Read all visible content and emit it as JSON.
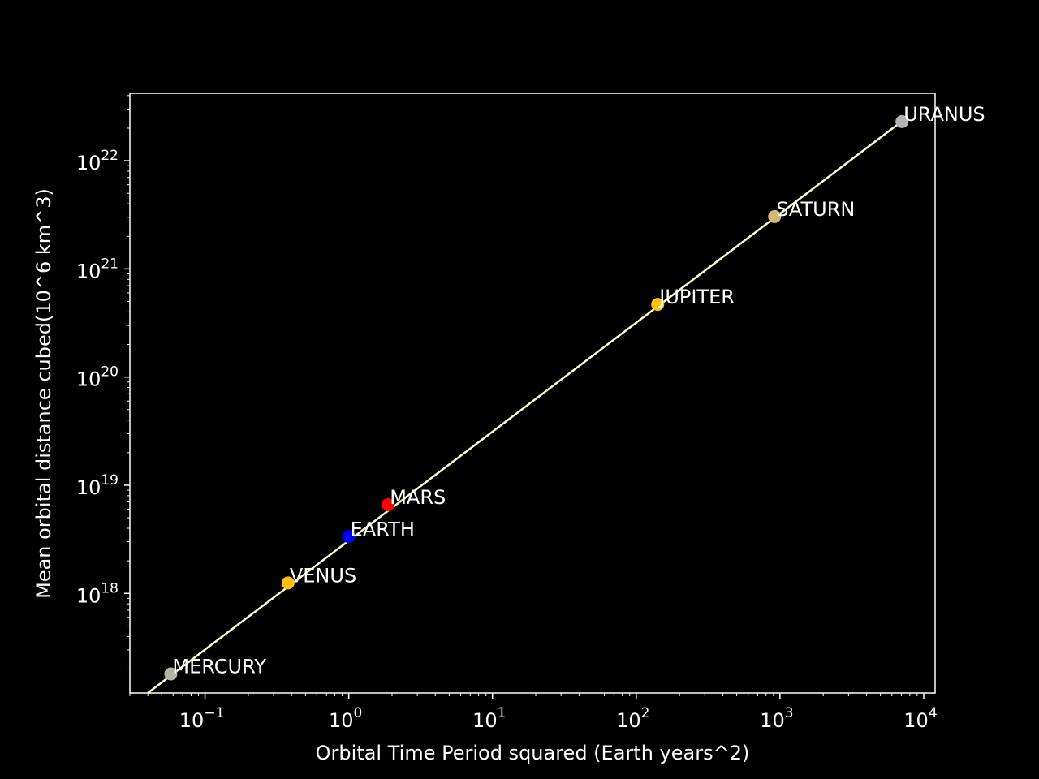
{
  "chart_data": {
    "type": "scatter",
    "title": "",
    "xlabel": "Orbital Time Period squared (Earth years^2)",
    "ylabel": "Mean orbital distance cubed(10^6 km^3)",
    "x_scale": "log",
    "y_scale": "log",
    "xlim": [
      0.03,
      12000
    ],
    "ylim": [
      1.2e+17,
      4.2e+22
    ],
    "x_ticks": [
      {
        "value": 0.1,
        "base": "10",
        "exp": "−1"
      },
      {
        "value": 1,
        "base": "10",
        "exp": "0"
      },
      {
        "value": 10,
        "base": "10",
        "exp": "1"
      },
      {
        "value": 100,
        "base": "10",
        "exp": "2"
      },
      {
        "value": 1000,
        "base": "10",
        "exp": "3"
      },
      {
        "value": 10000,
        "base": "10",
        "exp": "4"
      }
    ],
    "y_ticks": [
      {
        "value": 1e+18,
        "base": "10",
        "exp": "18"
      },
      {
        "value": 1e+19,
        "base": "10",
        "exp": "19"
      },
      {
        "value": 1e+20,
        "base": "10",
        "exp": "20"
      },
      {
        "value": 1e+21,
        "base": "10",
        "exp": "21"
      },
      {
        "value": 1e+22,
        "base": "10",
        "exp": "22"
      }
    ],
    "grid": false,
    "background": "#000000",
    "fit_line": {
      "color": "#ffffcc",
      "points": [
        [
          0.04,
          1.2e+17
        ],
        [
          7000,
          2.3e+22
        ]
      ]
    },
    "points": [
      {
        "label": "MERCURY",
        "x": 0.0578,
        "y": 1.8e+17,
        "color": "#b4b4a8"
      },
      {
        "label": "VENUS",
        "x": 0.378,
        "y": 1.25e+18,
        "color": "#ffc010"
      },
      {
        "label": "EARTH",
        "x": 1.0,
        "y": 3.35e+18,
        "color": "#0000ff"
      },
      {
        "label": "MARS",
        "x": 1.88,
        "y": 6.6e+18,
        "color": "#ff0000"
      },
      {
        "label": "JUPITER",
        "x": 141,
        "y": 4.7e+20,
        "color": "#ffc010"
      },
      {
        "label": "SATURN",
        "x": 917,
        "y": 3.05e+21,
        "color": "#d4b87a"
      },
      {
        "label": "URANUS",
        "x": 7060,
        "y": 2.3e+22,
        "color": "#b4b4b4"
      }
    ]
  }
}
